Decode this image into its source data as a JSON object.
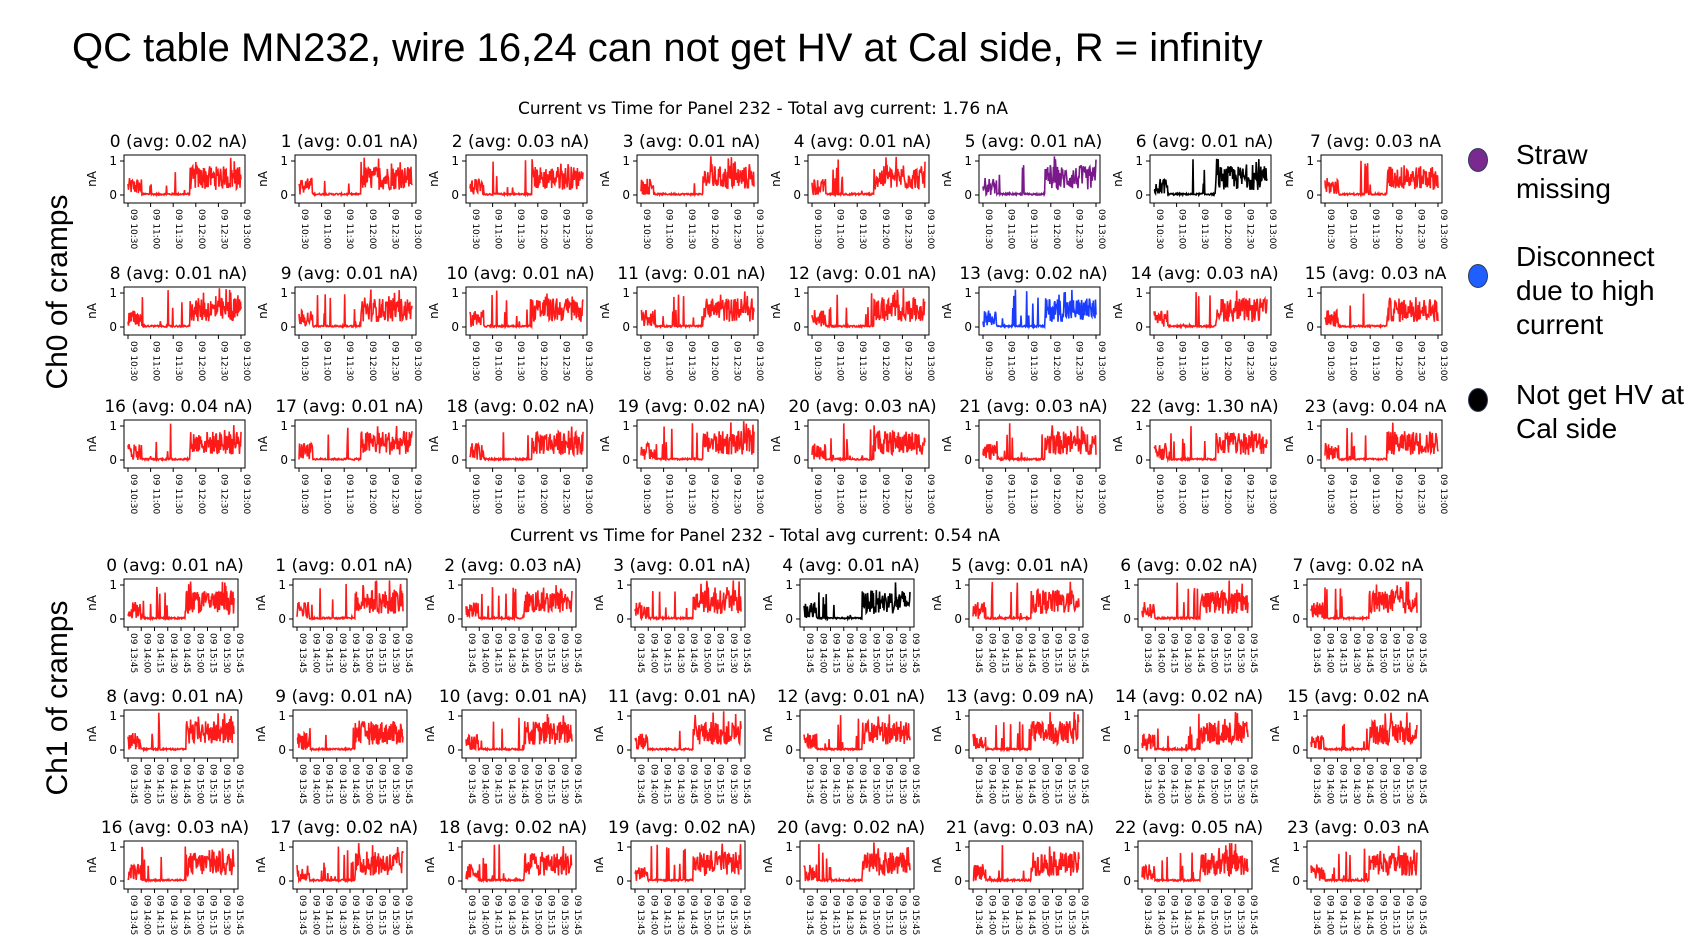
{
  "slide_title": "QC table MN232, wire 16,24 can not get HV at Cal side, R = infinity",
  "legend": [
    {
      "lines": [
        "Straw",
        "missing"
      ],
      "color": "#7a2a8e"
    },
    {
      "lines": [
        "Disconnect",
        "due to high",
        "current"
      ],
      "color": "#1f5eff"
    },
    {
      "lines": [
        "Not get HV at",
        "Cal side"
      ],
      "color": "#000000"
    }
  ],
  "colors": {
    "normal": "#ff1a1a",
    "straw_missing": "#7a1a8a",
    "disconnect": "#1a3cff",
    "no_hv": "#000000"
  },
  "chart_data": [
    {
      "type": "line",
      "row_label": "Ch0 of cramps",
      "title": "Current vs Time for Panel 232 - Total avg current: 1.76 nA",
      "ylabel": "nA",
      "yticks": [
        "0",
        "1"
      ],
      "ylim": [
        0,
        1
      ],
      "xticks": [
        "09 10:30",
        "09 11:00",
        "09 11:30",
        "09 12:00",
        "09 12:30",
        "09 13:00"
      ],
      "subplots": [
        {
          "title": "0 (avg: 0.02 nA)",
          "status": "normal"
        },
        {
          "title": "1 (avg: 0.01 nA)",
          "status": "normal"
        },
        {
          "title": "2 (avg: 0.03 nA)",
          "status": "normal"
        },
        {
          "title": "3 (avg: 0.01 nA)",
          "status": "normal"
        },
        {
          "title": "4 (avg: 0.01 nA)",
          "status": "normal"
        },
        {
          "title": "5 (avg: 0.01 nA)",
          "status": "straw_missing"
        },
        {
          "title": "6 (avg: 0.01 nA)",
          "status": "no_hv"
        },
        {
          "title": "7 (avg: 0.03 nA",
          "status": "normal"
        },
        {
          "title": "8 (avg: 0.01 nA)",
          "status": "normal"
        },
        {
          "title": "9 (avg: 0.01 nA)",
          "status": "normal"
        },
        {
          "title": "10 (avg: 0.01 nA)",
          "status": "normal"
        },
        {
          "title": "11 (avg: 0.01 nA)",
          "status": "normal"
        },
        {
          "title": "12 (avg: 0.01 nA)",
          "status": "normal"
        },
        {
          "title": "13 (avg: 0.02 nA)",
          "status": "disconnect"
        },
        {
          "title": "14 (avg: 0.03 nA)",
          "status": "normal"
        },
        {
          "title": "15 (avg: 0.03 nA",
          "status": "normal"
        },
        {
          "title": "16 (avg: 0.04 nA)",
          "status": "normal"
        },
        {
          "title": "17 (avg: 0.01 nA)",
          "status": "normal"
        },
        {
          "title": "18 (avg: 0.02 nA)",
          "status": "normal"
        },
        {
          "title": "19 (avg: 0.02 nA)",
          "status": "normal"
        },
        {
          "title": "20 (avg: 0.03 nA)",
          "status": "normal"
        },
        {
          "title": "21 (avg: 0.03 nA)",
          "status": "normal"
        },
        {
          "title": "22 (avg: 1.30 nA)",
          "status": "normal"
        },
        {
          "title": "23 (avg: 0.04 nA",
          "status": "normal"
        }
      ]
    },
    {
      "type": "line",
      "row_label": "Ch1 of cramps",
      "title": "Current vs Time for Panel 232 - Total avg current: 0.54 nA",
      "ylabel": "nA",
      "yticks": [
        "0",
        "1"
      ],
      "ylim": [
        0,
        1
      ],
      "xticks": [
        "09 13:45",
        "09 14:00",
        "09 14:15",
        "09 14:30",
        "09 14:45",
        "09 15:00",
        "09 15:15",
        "09 15:30",
        "09 15:45"
      ],
      "subplots": [
        {
          "title": "0 (avg: 0.01 nA)",
          "status": "normal"
        },
        {
          "title": "1 (avg: 0.01 nA)",
          "status": "normal"
        },
        {
          "title": "2 (avg: 0.03 nA)",
          "status": "normal"
        },
        {
          "title": "3 (avg: 0.01 nA)",
          "status": "normal"
        },
        {
          "title": "4 (avg: 0.01 nA)",
          "status": "no_hv"
        },
        {
          "title": "5 (avg: 0.01 nA)",
          "status": "normal"
        },
        {
          "title": "6 (avg: 0.02 nA)",
          "status": "normal"
        },
        {
          "title": "7 (avg: 0.02 nA",
          "status": "normal"
        },
        {
          "title": "8 (avg: 0.01 nA)",
          "status": "normal"
        },
        {
          "title": "9 (avg: 0.01 nA)",
          "status": "normal"
        },
        {
          "title": "10 (avg: 0.01 nA)",
          "status": "normal"
        },
        {
          "title": "11 (avg: 0.01 nA)",
          "status": "normal"
        },
        {
          "title": "12 (avg: 0.01 nA)",
          "status": "normal"
        },
        {
          "title": "13 (avg: 0.09 nA)",
          "status": "normal"
        },
        {
          "title": "14 (avg: 0.02 nA)",
          "status": "normal"
        },
        {
          "title": "15 (avg: 0.02 nA",
          "status": "normal"
        },
        {
          "title": "16 (avg: 0.03 nA)",
          "status": "normal"
        },
        {
          "title": "17 (avg: 0.02 nA)",
          "status": "normal"
        },
        {
          "title": "18 (avg: 0.02 nA)",
          "status": "normal"
        },
        {
          "title": "19 (avg: 0.02 nA)",
          "status": "normal"
        },
        {
          "title": "20 (avg: 0.02 nA)",
          "status": "normal"
        },
        {
          "title": "21 (avg: 0.03 nA)",
          "status": "normal"
        },
        {
          "title": "22 (avg: 0.05 nA)",
          "status": "normal"
        },
        {
          "title": "23 (avg: 0.03 nA",
          "status": "normal"
        }
      ]
    }
  ]
}
